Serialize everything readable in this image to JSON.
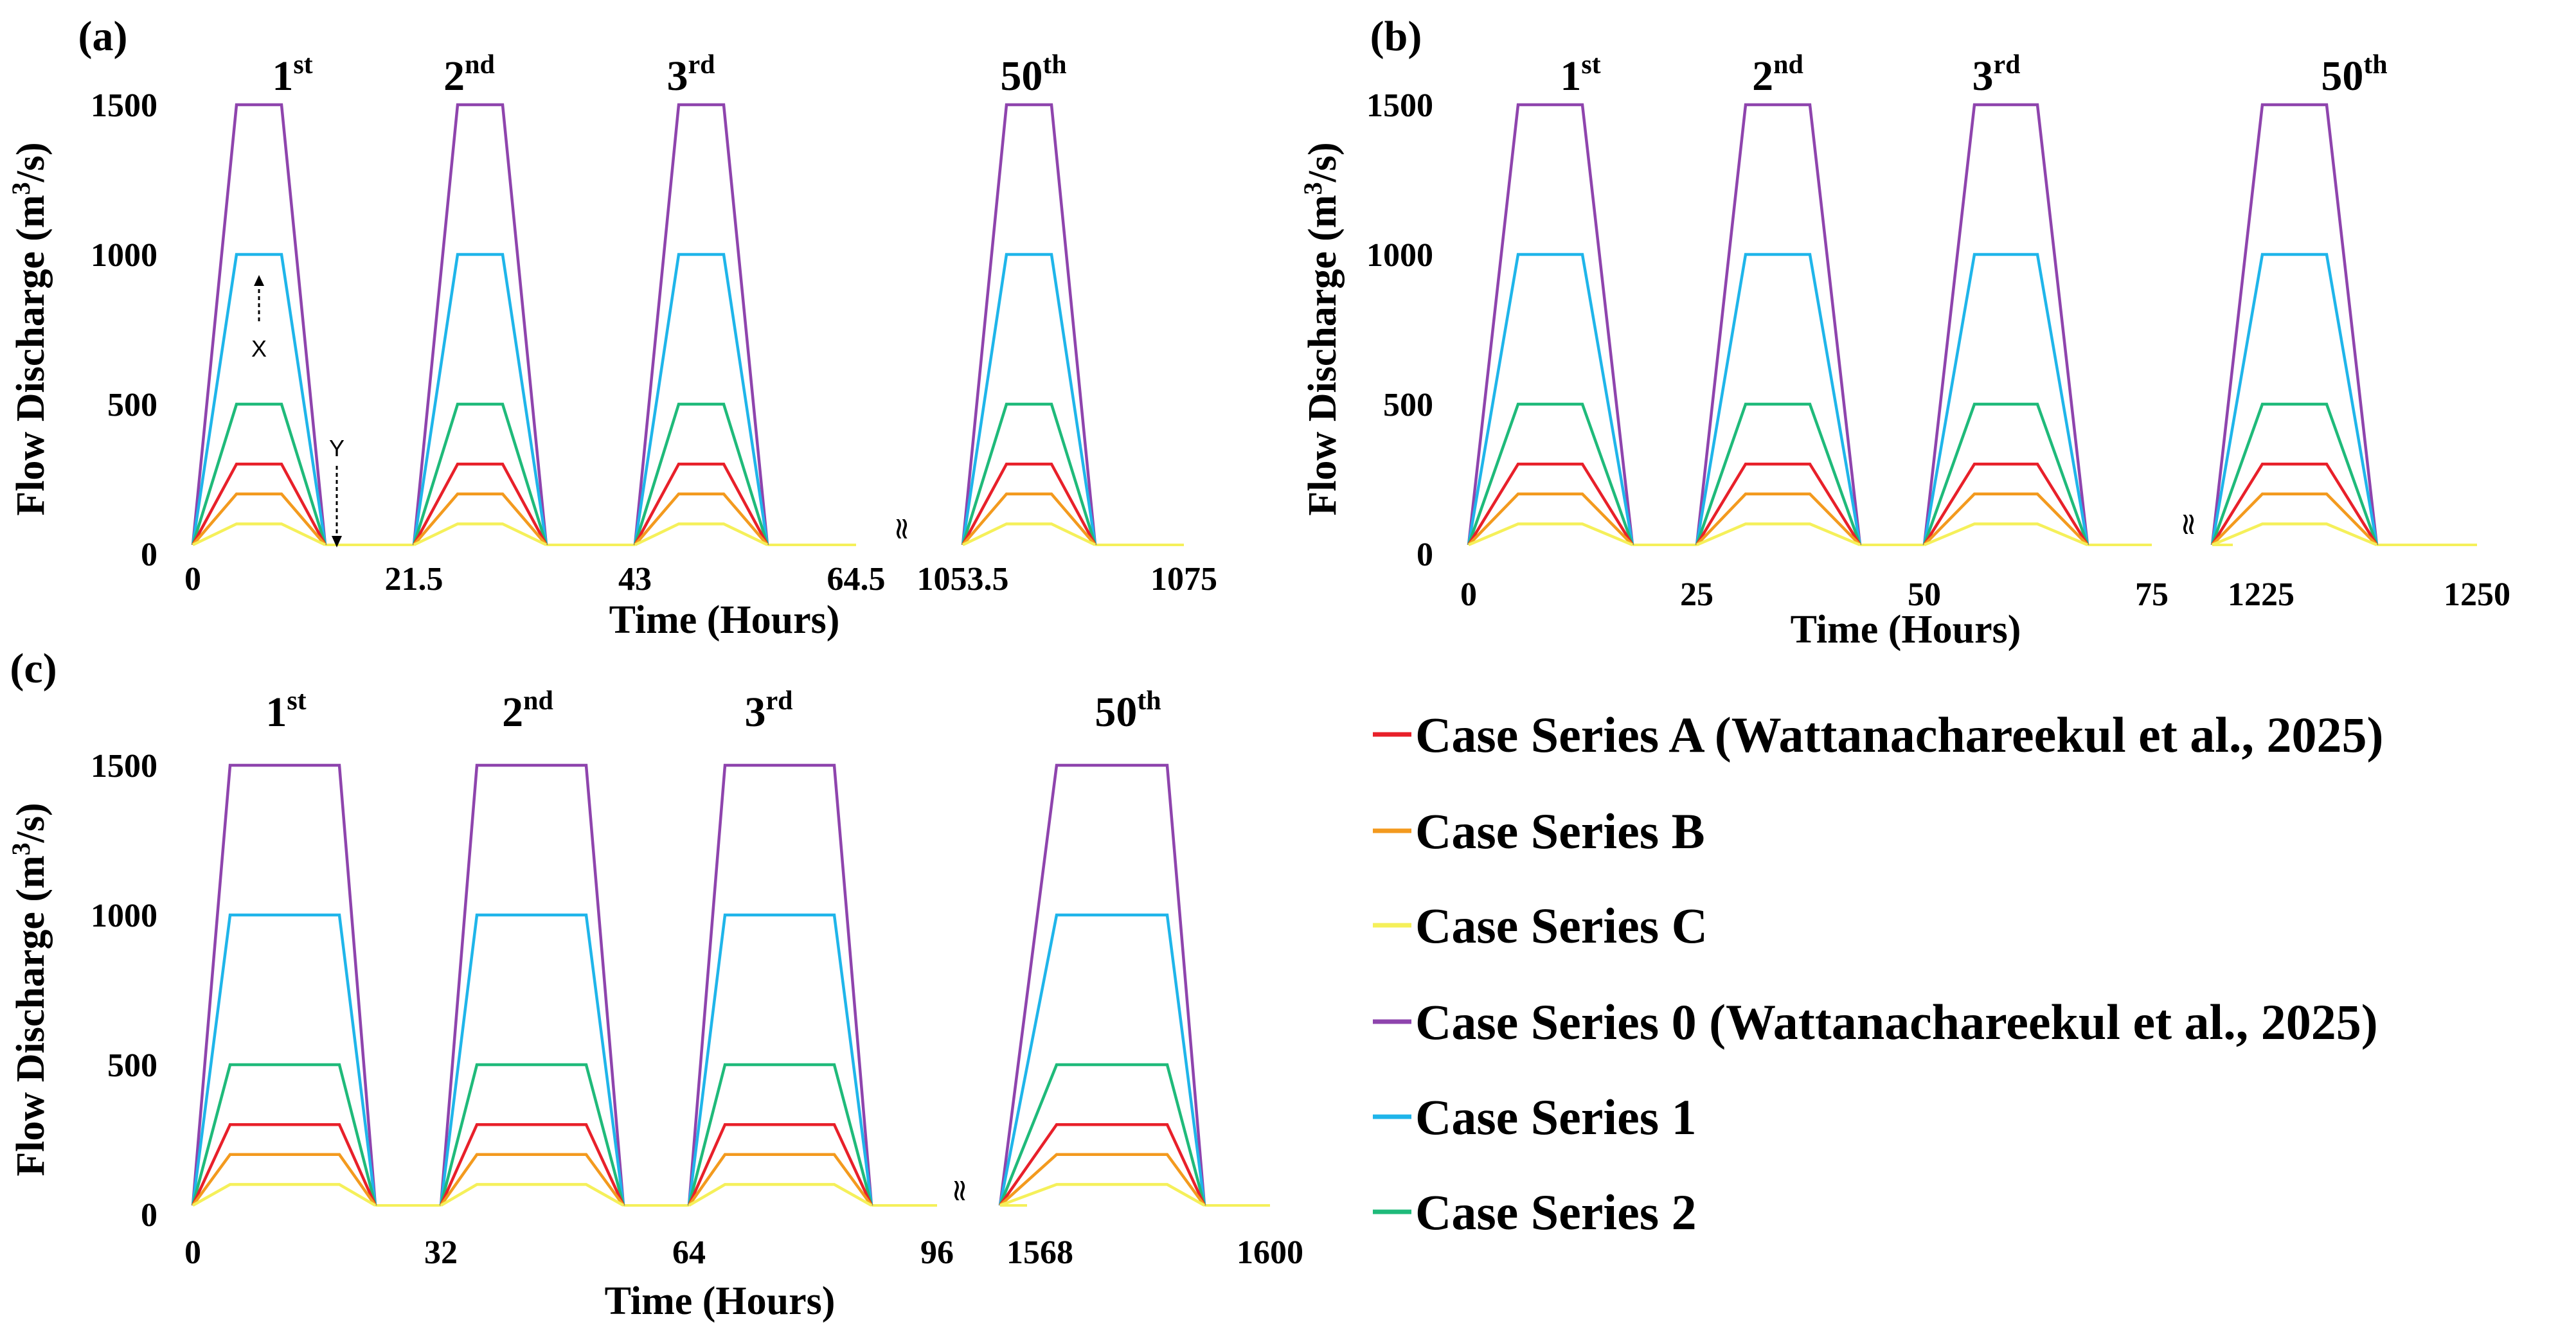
{
  "chart_data": [
    {
      "type": "line",
      "panel": "(a)",
      "xlabel": "Time (Hours)",
      "ylabel_main": "Flow  Discharge (m",
      "ylabel_sup": "3",
      "ylabel_end": "/s)",
      "ylim": [
        0,
        1500
      ],
      "yticks": [
        "0",
        "500",
        "1000",
        "1500"
      ],
      "ytick_values": [
        0,
        500,
        1000,
        1500
      ],
      "xticks": [
        "0",
        "21.5",
        "43",
        "64.5",
        "1053.5",
        "1075"
      ],
      "break_symbol": "≈",
      "cycle_labels": [
        {
          "num": "1",
          "sup": "st"
        },
        {
          "num": "2",
          "sup": "nd"
        },
        {
          "num": "3",
          "sup": "rd"
        },
        {
          "num": "50",
          "sup": "th"
        }
      ],
      "annotations": {
        "x_label": "X",
        "y_label": "Y"
      }
    },
    {
      "type": "line",
      "panel": "(b)",
      "xlabel": "Time (Hours)",
      "ylabel_main": "Flow  Discharge (m",
      "ylabel_sup": "3",
      "ylabel_end": "/s)",
      "ylim": [
        0,
        1500
      ],
      "yticks": [
        "0",
        "500",
        "1000",
        "1500"
      ],
      "ytick_values": [
        0,
        500,
        1000,
        1500
      ],
      "xticks": [
        "0",
        "25",
        "50",
        "75",
        "1225",
        "1250"
      ],
      "break_symbol": "≈",
      "cycle_labels": [
        {
          "num": "1",
          "sup": "st"
        },
        {
          "num": "2",
          "sup": "nd"
        },
        {
          "num": "3",
          "sup": "rd"
        },
        {
          "num": "50",
          "sup": "th"
        }
      ]
    },
    {
      "type": "line",
      "panel": "(c)",
      "xlabel": "Time (Hours)",
      "ylabel_main": "Flow  Discharge (m",
      "ylabel_sup": "3",
      "ylabel_end": "/s)",
      "ylim": [
        0,
        1500
      ],
      "yticks": [
        "0",
        "500",
        "1000",
        "1500"
      ],
      "ytick_values": [
        0,
        500,
        1000,
        1500
      ],
      "xticks": [
        "0",
        "32",
        "64",
        "96",
        "1568",
        "1600"
      ],
      "break_symbol": "≈",
      "cycle_labels": [
        {
          "num": "1",
          "sup": "st"
        },
        {
          "num": "2",
          "sup": "nd"
        },
        {
          "num": "3",
          "sup": "rd"
        },
        {
          "num": "50",
          "sup": "th"
        }
      ]
    }
  ],
  "series": [
    {
      "name": "Case Series A (Wattanachareekul et al., 2025)",
      "peak": 300,
      "color": "#e8202a"
    },
    {
      "name": "Case Series B",
      "peak": 200,
      "color": "#f39a1e"
    },
    {
      "name": "Case Series C",
      "peak": 100,
      "color": "#f5f05a"
    },
    {
      "name": "Case Series 0  (Wattanachareekul et al., 2025)",
      "peak": 1500,
      "color": "#8e44ad"
    },
    {
      "name": "Case Series 1",
      "peak": 1000,
      "color": "#1fb5ea"
    },
    {
      "name": "Case Series 2",
      "peak": 500,
      "color": "#1fba7a"
    }
  ],
  "base_flow": 30
}
